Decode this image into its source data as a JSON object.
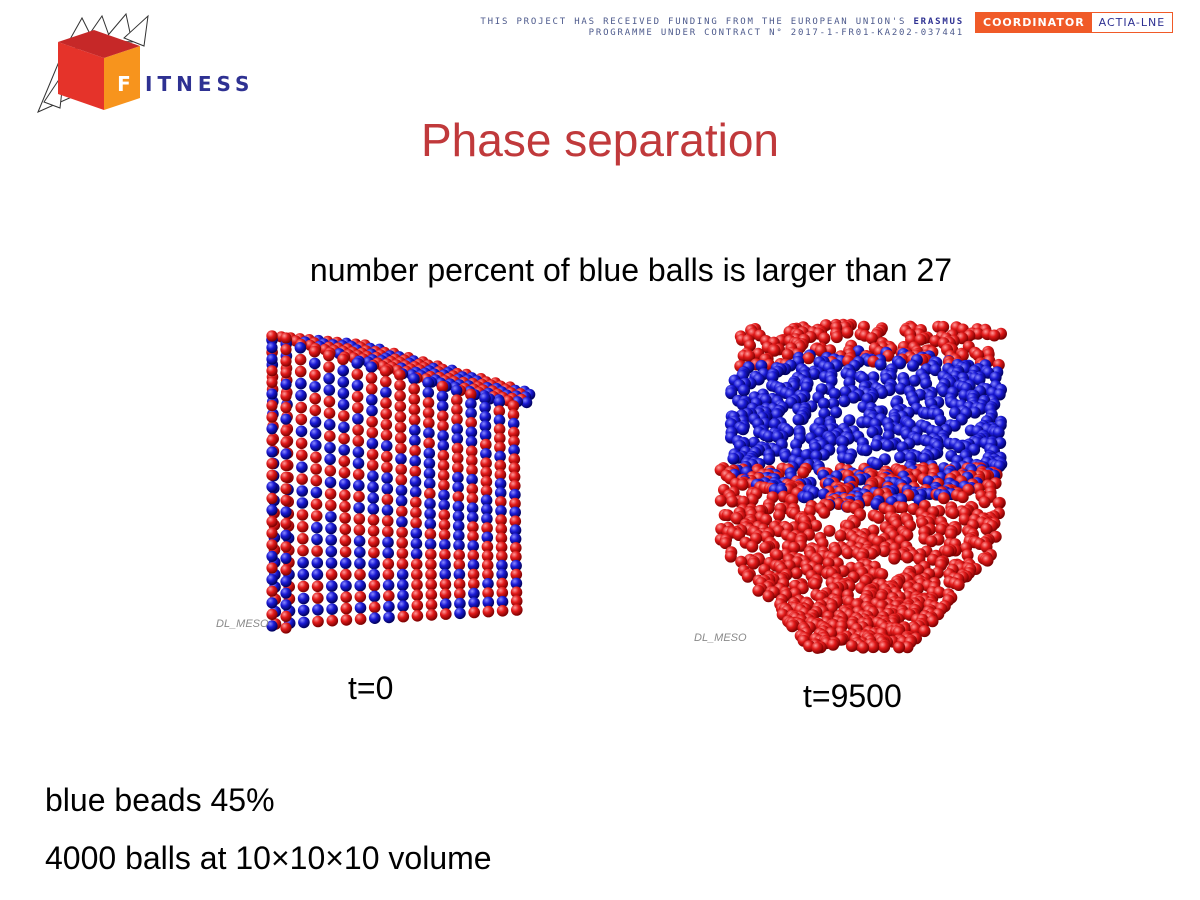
{
  "header": {
    "funding_line_1": "THIS PROJECT HAS RECEIVED FUNDING FROM THE EUROPEAN UNION'S",
    "funding_highlight": "ERASMUS",
    "funding_line_2": "PROGRAMME UNDER CONTRACT N° 2017-1-FR01-KA202-037441",
    "coordinator_label": "COORDINATOR",
    "coordinator_name": "ACTIA-LNE"
  },
  "logo": {
    "letter": "F",
    "word": "ITNESS",
    "colors": {
      "red": "#e5332a",
      "orange": "#f7941d",
      "navy": "#2e3192"
    }
  },
  "slide": {
    "title": "Phase separation",
    "subtitle": "number percent of blue balls is larger than 27",
    "left_panel": {
      "watermark": "DL_MESO",
      "caption": "t=0"
    },
    "right_panel": {
      "watermark": "DL_MESO",
      "caption": "t=9500"
    },
    "facts": [
      "blue beads  45%",
      "4000 balls at 10×10×10 volume"
    ]
  },
  "colors": {
    "title": "#c0393b",
    "bead_red": "#e21a1a",
    "bead_blue": "#1a1ad6"
  }
}
